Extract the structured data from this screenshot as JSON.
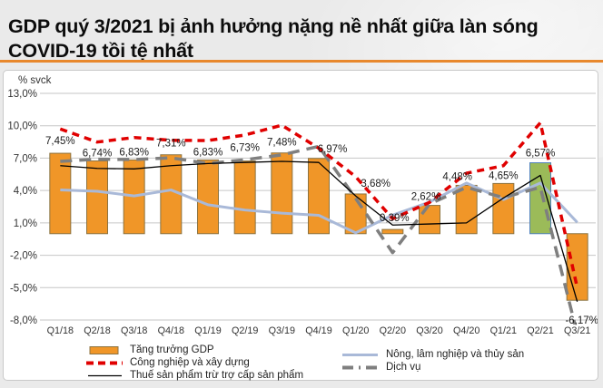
{
  "header": {
    "title": "GDP quý 3/2021 bị ảnh hưởng nặng nề nhất giữa làn sóng COVID-19 tồi tệ nhất",
    "accent_color": "#E8882D"
  },
  "chart_data": {
    "type": "bar+line combo",
    "title": "GDP quý 3/2021 bị ảnh hưởng nặng nề nhất giữa làn sóng COVID-19 tồi tệ nhất",
    "unit_label": "% svck",
    "categories": [
      "Q1/18",
      "Q2/18",
      "Q3/18",
      "Q4/18",
      "Q1/19",
      "Q2/19",
      "Q3/19",
      "Q4/19",
      "Q1/20",
      "Q2/20",
      "Q3/20",
      "Q4/20",
      "Q1/21",
      "Q2/21",
      "Q3/21"
    ],
    "bar_series": {
      "name": "Tăng trưởng GDP",
      "values": [
        7.45,
        6.74,
        6.83,
        7.31,
        6.83,
        6.73,
        7.48,
        6.97,
        3.68,
        0.39,
        2.62,
        4.48,
        4.65,
        6.57,
        -6.17
      ],
      "labels": [
        "7,45%",
        "6,74%",
        "6,83%",
        "7,31%",
        "6,83%",
        "6,73%",
        "7,48%",
        "6,97%",
        "3,68%",
        "0,39%",
        "2,62%",
        "4,48%",
        "4,65%",
        "6,57%",
        "-6,17%"
      ],
      "color": "#F09628",
      "border_color": "#8C7340",
      "highlight_index": 13,
      "highlight_color": "#9BBB59",
      "highlight_border_color": "#4F81BD"
    },
    "line_series": [
      {
        "name": "Nông, lâm nghiệp và thủy sản",
        "values": [
          4.05,
          3.93,
          3.5,
          4.05,
          2.68,
          2.19,
          1.9,
          1.7,
          0.08,
          1.72,
          2.93,
          4.69,
          3.16,
          4.69,
          1.04
        ],
        "color": "#A9B9D8",
        "style": "solid",
        "width": 3
      },
      {
        "name": "Dịch vụ",
        "values": [
          6.7,
          6.9,
          6.87,
          7.03,
          6.5,
          6.85,
          7.3,
          8.09,
          3.27,
          -1.76,
          2.75,
          4.29,
          3.34,
          4.3,
          -9.28
        ],
        "color": "#7F7F7F",
        "style": "dashed",
        "dash": "13 8",
        "width": 3.5
      },
      {
        "name": "Thuế sản phẩm trừ trợ cấp sản phẩm",
        "values": [
          6.3,
          6.05,
          6.0,
          6.3,
          6.5,
          6.6,
          6.7,
          6.6,
          3.5,
          0.8,
          0.9,
          1.0,
          3.3,
          5.4,
          -6.3
        ],
        "color": "#000000",
        "style": "solid",
        "width": 1.3
      },
      {
        "name": "Công nghiệp và xây dựng",
        "values": [
          9.7,
          8.49,
          8.91,
          8.65,
          8.63,
          9.14,
          10.05,
          7.92,
          5.28,
          1.38,
          2.9,
          5.6,
          6.3,
          10.28,
          -5.02
        ],
        "color": "#E00000",
        "style": "dashed",
        "dash": "8 6",
        "width": 3.5
      }
    ],
    "y_axis": {
      "ticks": [
        "13,0%",
        "10,0%",
        "7,0%",
        "4,0%",
        "1,0%",
        "-2,0%",
        "-5,0%",
        "-8,0%"
      ],
      "tick_values": [
        13,
        10,
        7,
        4,
        1,
        -2,
        -5,
        -8
      ],
      "min": -8,
      "max": 13
    },
    "grid": true,
    "legend_position": "bottom"
  }
}
